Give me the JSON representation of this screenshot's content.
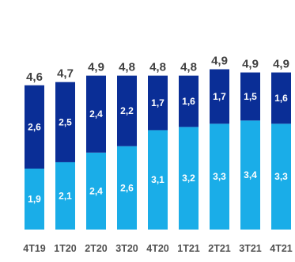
{
  "chart_data": {
    "type": "bar",
    "stacked": true,
    "categories": [
      "4T19",
      "1T20",
      "2T20",
      "3T20",
      "4T20",
      "1T21",
      "2T21",
      "3T21",
      "4T21"
    ],
    "series": [
      {
        "values": [
          1.9,
          2.1,
          2.4,
          2.6,
          3.1,
          3.2,
          3.3,
          3.4,
          3.3
        ],
        "labels": [
          "1,9",
          "2,1",
          "2,4",
          "2,6",
          "3,1",
          "3,2",
          "3,3",
          "3,4",
          "3,3"
        ],
        "color": "#1AADE8"
      },
      {
        "values": [
          2.6,
          2.5,
          2.4,
          2.2,
          1.7,
          1.6,
          1.7,
          1.5,
          1.6
        ],
        "labels": [
          "2,6",
          "2,5",
          "2,4",
          "2,2",
          "1,7",
          "1,6",
          "1,7",
          "1,5",
          "1,6"
        ],
        "color": "#0A2E96"
      }
    ],
    "totals": [
      4.6,
      4.7,
      4.9,
      4.8,
      4.8,
      4.8,
      4.9,
      4.9,
      4.9
    ],
    "total_labels": [
      "4,6",
      "4,7",
      "4,9",
      "4,8",
      "4,8",
      "4,8",
      "4,9",
      "4,9",
      "4,9"
    ],
    "ylim": [
      0,
      5.0
    ],
    "grid": false,
    "legend": "none"
  }
}
